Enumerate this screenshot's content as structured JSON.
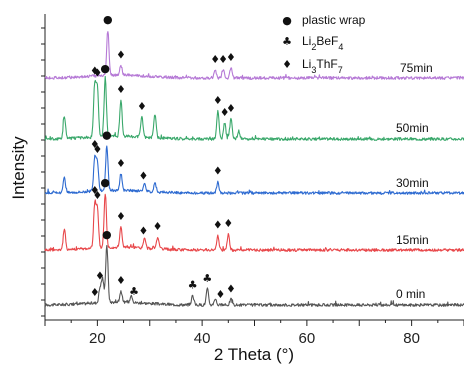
{
  "chart_data": {
    "type": "line",
    "xlabel": "2 Theta (°)",
    "ylabel": "Intensity",
    "xlim": [
      10,
      90
    ],
    "x_ticks": [
      20,
      40,
      60,
      80
    ],
    "grid": false,
    "legend_position": "top-right",
    "legend": [
      {
        "symbol": "dot",
        "glyph": "●",
        "label": "plastic wrap"
      },
      {
        "symbol": "club",
        "glyph": "♣",
        "label": "Li2BeF4",
        "parts": [
          "Li",
          "2",
          "BeF",
          "4"
        ]
      },
      {
        "symbol": "diamond",
        "glyph": "♦",
        "label": "Li3ThF7",
        "parts": [
          "Li",
          "3",
          "ThF",
          "7"
        ]
      }
    ],
    "series": [
      {
        "label": "0 min",
        "color": "#555555",
        "peaks": [
          [
            20.5,
            0.18
          ],
          [
            21.0,
            0.3
          ],
          [
            21.8,
            0.72
          ],
          [
            24.5,
            0.14
          ],
          [
            26.5,
            0.09
          ],
          [
            38.2,
            0.12
          ],
          [
            41.0,
            0.2
          ],
          [
            42.5,
            0.08
          ],
          [
            45.5,
            0.07
          ]
        ],
        "markers": [
          {
            "x": 19.5,
            "symbol": "diamond"
          },
          {
            "x": 20.5,
            "symbol": "diamond"
          },
          {
            "x": 21.8,
            "symbol": "dot"
          },
          {
            "x": 24.5,
            "symbol": "diamond"
          },
          {
            "x": 27.0,
            "symbol": "club"
          },
          {
            "x": 38.2,
            "symbol": "club"
          },
          {
            "x": 41.0,
            "symbol": "club"
          },
          {
            "x": 43.5,
            "symbol": "diamond"
          },
          {
            "x": 45.5,
            "symbol": "diamond"
          }
        ]
      },
      {
        "label": "15min",
        "color": "#e8474a",
        "peaks": [
          [
            13.7,
            0.25
          ],
          [
            19.5,
            0.55
          ],
          [
            20.0,
            0.48
          ],
          [
            21.5,
            0.68
          ],
          [
            24.5,
            0.25
          ],
          [
            29.0,
            0.12
          ],
          [
            31.5,
            0.15
          ],
          [
            43.0,
            0.18
          ],
          [
            45.0,
            0.2
          ]
        ],
        "markers": [
          {
            "x": 19.5,
            "symbol": "diamond"
          },
          {
            "x": 20.0,
            "symbol": "diamond"
          },
          {
            "x": 21.5,
            "symbol": "dot"
          },
          {
            "x": 24.5,
            "symbol": "diamond"
          },
          {
            "x": 28.8,
            "symbol": "diamond"
          },
          {
            "x": 31.5,
            "symbol": "diamond"
          },
          {
            "x": 43.0,
            "symbol": "diamond"
          },
          {
            "x": 45.0,
            "symbol": "diamond"
          }
        ]
      },
      {
        "label": "30min",
        "color": "#2e6bd1",
        "peaks": [
          [
            13.7,
            0.2
          ],
          [
            19.5,
            0.45
          ],
          [
            20.0,
            0.38
          ],
          [
            21.8,
            0.6
          ],
          [
            24.5,
            0.22
          ],
          [
            29.0,
            0.1
          ],
          [
            31.0,
            0.12
          ],
          [
            43.0,
            0.15
          ]
        ],
        "markers": [
          {
            "x": 19.5,
            "symbol": "diamond"
          },
          {
            "x": 20.0,
            "symbol": "diamond"
          },
          {
            "x": 21.8,
            "symbol": "dot"
          },
          {
            "x": 24.5,
            "symbol": "diamond"
          },
          {
            "x": 28.8,
            "symbol": "diamond"
          },
          {
            "x": 43.0,
            "symbol": "diamond"
          }
        ]
      },
      {
        "label": "50min",
        "color": "#3aa86b",
        "peaks": [
          [
            13.7,
            0.28
          ],
          [
            19.5,
            0.65
          ],
          [
            20.0,
            0.62
          ],
          [
            21.5,
            0.72
          ],
          [
            24.5,
            0.45
          ],
          [
            28.5,
            0.25
          ],
          [
            31.0,
            0.3
          ],
          [
            43.0,
            0.35
          ],
          [
            44.3,
            0.2
          ],
          [
            45.5,
            0.25
          ],
          [
            47.0,
            0.1
          ]
        ],
        "markers": [
          {
            "x": 19.5,
            "symbol": "diamond"
          },
          {
            "x": 20.0,
            "symbol": "diamond"
          },
          {
            "x": 21.5,
            "symbol": "dot"
          },
          {
            "x": 24.5,
            "symbol": "diamond"
          },
          {
            "x": 28.5,
            "symbol": "diamond"
          },
          {
            "x": 43.0,
            "symbol": "diamond"
          },
          {
            "x": 44.3,
            "symbol": "diamond"
          },
          {
            "x": 45.5,
            "symbol": "diamond"
          }
        ]
      },
      {
        "label": "75min",
        "color": "#b67ad6",
        "peaks": [
          [
            22.0,
            0.55
          ],
          [
            24.5,
            0.12
          ],
          [
            42.5,
            0.1
          ],
          [
            44.0,
            0.1
          ],
          [
            45.5,
            0.12
          ]
        ],
        "markers": [
          {
            "x": 22.0,
            "symbol": "dot"
          },
          {
            "x": 24.5,
            "symbol": "diamond"
          },
          {
            "x": 42.5,
            "symbol": "diamond"
          },
          {
            "x": 44.0,
            "symbol": "diamond"
          },
          {
            "x": 45.5,
            "symbol": "diamond"
          }
        ]
      }
    ]
  }
}
